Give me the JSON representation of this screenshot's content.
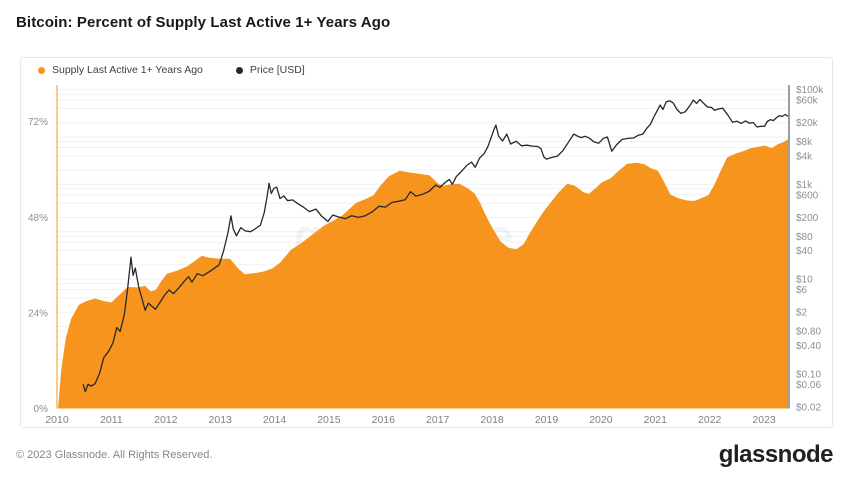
{
  "title": "Bitcoin: Percent of Supply Last Active 1+ Years Ago",
  "legend": [
    {
      "label": "Supply Last Active 1+ Years Ago",
      "color": "#f7941d"
    },
    {
      "label": "Price [USD]",
      "color": "#26282c"
    }
  ],
  "watermark": "glassnode",
  "footer": {
    "copyright": "© 2023 Glassnode. All Rights Reserved.",
    "brand": "glassnode"
  },
  "colors": {
    "area": "#f7941d",
    "price_line": "#26282c",
    "left_axis_line": "#f7941d",
    "right_axis_line": "#3a3d42",
    "gridline": "#f1f1f2",
    "watermark": "rgba(90,95,100,0.07)"
  },
  "chart_data": {
    "type": "area",
    "title": "Bitcoin: Percent of Supply Last Active 1+ Years Ago",
    "grid": true,
    "legend_position": "top-left",
    "x_axis": {
      "range": [
        2010,
        2023.44
      ],
      "ticks": [
        2010,
        2011,
        2012,
        2013,
        2014,
        2015,
        2016,
        2017,
        2018,
        2019,
        2020,
        2021,
        2022,
        2023
      ]
    },
    "left_axis": {
      "title": "Supply Last Active 1+ Years Ago",
      "unit": "%",
      "range": [
        0,
        81.2
      ],
      "tick_values": [
        0,
        24,
        48,
        72
      ],
      "tick_labels": [
        "0%",
        "24%",
        "48%",
        "72%"
      ]
    },
    "right_axis": {
      "title": "Price [USD]",
      "scale": "log",
      "range": [
        0.0185,
        125000
      ],
      "tick_values": [
        100000,
        60000,
        20000,
        8000,
        4000,
        1000,
        600,
        200,
        80,
        40,
        10,
        6,
        2,
        0.8,
        0.4,
        0.1,
        0.06,
        0.02
      ],
      "tick_labels": [
        "$100k",
        "$60k",
        "$20k",
        "$8k",
        "$4k",
        "$1k",
        "$600",
        "$200",
        "$80",
        "$40",
        "$10",
        "$6",
        "$2",
        "$0.80",
        "$0.40",
        "$0.10",
        "$0.06",
        "$0.02"
      ],
      "gridline_values": [
        0.02,
        0.04,
        0.06,
        0.08,
        0.1,
        0.2,
        0.4,
        0.6,
        0.8,
        1,
        2,
        4,
        6,
        8,
        10,
        20,
        40,
        60,
        80,
        100,
        200,
        400,
        600,
        800,
        1000,
        2000,
        4000,
        6000,
        8000,
        10000,
        20000,
        40000,
        60000,
        80000,
        100000
      ]
    },
    "series": [
      {
        "name": "Supply Last Active 1+ Years Ago",
        "type": "area",
        "axis": "left",
        "color": "#f7941d",
        "points": [
          [
            2010.02,
            0
          ],
          [
            2010.08,
            10
          ],
          [
            2010.16,
            17.5
          ],
          [
            2010.26,
            22.5
          ],
          [
            2010.4,
            26
          ],
          [
            2010.55,
            27
          ],
          [
            2010.7,
            27.6
          ],
          [
            2010.85,
            27
          ],
          [
            2011.0,
            26.6
          ],
          [
            2011.12,
            28.2
          ],
          [
            2011.3,
            30.5
          ],
          [
            2011.5,
            30.4
          ],
          [
            2011.62,
            30.8
          ],
          [
            2011.72,
            29.4
          ],
          [
            2011.82,
            29.8
          ],
          [
            2011.92,
            32
          ],
          [
            2012.02,
            33.8
          ],
          [
            2012.2,
            34.6
          ],
          [
            2012.38,
            35.6
          ],
          [
            2012.52,
            36.9
          ],
          [
            2012.66,
            38.3
          ],
          [
            2012.82,
            37.8
          ],
          [
            2013.0,
            37.6
          ],
          [
            2013.18,
            37.6
          ],
          [
            2013.32,
            35.3
          ],
          [
            2013.45,
            33.7
          ],
          [
            2013.6,
            33.9
          ],
          [
            2013.78,
            34.3
          ],
          [
            2013.95,
            35.1
          ],
          [
            2014.1,
            36.6
          ],
          [
            2014.3,
            39.8
          ],
          [
            2014.5,
            41.6
          ],
          [
            2014.68,
            43.5
          ],
          [
            2014.9,
            45.8
          ],
          [
            2015.1,
            47.3
          ],
          [
            2015.25,
            48.5
          ],
          [
            2015.5,
            51.6
          ],
          [
            2015.68,
            52.6
          ],
          [
            2015.82,
            53.5
          ],
          [
            2015.95,
            56
          ],
          [
            2016.1,
            58.3
          ],
          [
            2016.3,
            59.7
          ],
          [
            2016.5,
            59.2
          ],
          [
            2016.65,
            58.9
          ],
          [
            2016.85,
            58.5
          ],
          [
            2017.0,
            56.5
          ],
          [
            2017.1,
            55.9
          ],
          [
            2017.25,
            56.3
          ],
          [
            2017.4,
            56.4
          ],
          [
            2017.55,
            55.3
          ],
          [
            2017.68,
            54
          ],
          [
            2017.78,
            51.5
          ],
          [
            2017.9,
            48
          ],
          [
            2018.02,
            45
          ],
          [
            2018.15,
            42
          ],
          [
            2018.3,
            40.3
          ],
          [
            2018.45,
            40
          ],
          [
            2018.58,
            41.3
          ],
          [
            2018.7,
            44.2
          ],
          [
            2018.82,
            46.8
          ],
          [
            2018.95,
            49.5
          ],
          [
            2019.08,
            51.8
          ],
          [
            2019.22,
            54.2
          ],
          [
            2019.38,
            56.4
          ],
          [
            2019.52,
            55.9
          ],
          [
            2019.68,
            54.3
          ],
          [
            2019.78,
            53.9
          ],
          [
            2019.9,
            55.3
          ],
          [
            2020.02,
            56.8
          ],
          [
            2020.18,
            57.8
          ],
          [
            2020.32,
            59.6
          ],
          [
            2020.48,
            61.4
          ],
          [
            2020.65,
            61.7
          ],
          [
            2020.8,
            61.3
          ],
          [
            2020.92,
            60.3
          ],
          [
            2021.05,
            59.7
          ],
          [
            2021.15,
            57.2
          ],
          [
            2021.28,
            53.7
          ],
          [
            2021.42,
            52.8
          ],
          [
            2021.58,
            52.2
          ],
          [
            2021.72,
            52.1
          ],
          [
            2021.85,
            52.8
          ],
          [
            2021.98,
            53.6
          ],
          [
            2022.08,
            56
          ],
          [
            2022.18,
            59
          ],
          [
            2022.32,
            63
          ],
          [
            2022.48,
            64
          ],
          [
            2022.6,
            64.5
          ],
          [
            2022.75,
            65.3
          ],
          [
            2022.9,
            65.7
          ],
          [
            2023.02,
            66
          ],
          [
            2023.14,
            65.3
          ],
          [
            2023.26,
            66.4
          ],
          [
            2023.36,
            66.9
          ],
          [
            2023.44,
            67.6
          ]
        ]
      },
      {
        "name": "Price [USD]",
        "type": "line",
        "axis": "right",
        "color": "#26282c",
        "points": [
          [
            2010.48,
            0.06
          ],
          [
            2010.52,
            0.042
          ],
          [
            2010.57,
            0.06
          ],
          [
            2010.63,
            0.055
          ],
          [
            2010.7,
            0.062
          ],
          [
            2010.78,
            0.1
          ],
          [
            2010.86,
            0.22
          ],
          [
            2010.95,
            0.3
          ],
          [
            2011.03,
            0.45
          ],
          [
            2011.1,
            0.95
          ],
          [
            2011.16,
            0.78
          ],
          [
            2011.24,
            1.8
          ],
          [
            2011.3,
            6.5
          ],
          [
            2011.36,
            29
          ],
          [
            2011.4,
            12
          ],
          [
            2011.44,
            17
          ],
          [
            2011.5,
            7
          ],
          [
            2011.56,
            4
          ],
          [
            2011.62,
            2.2
          ],
          [
            2011.68,
            3.1
          ],
          [
            2011.74,
            2.7
          ],
          [
            2011.81,
            2.3
          ],
          [
            2011.9,
            3.3
          ],
          [
            2011.98,
            4.6
          ],
          [
            2012.06,
            5.9
          ],
          [
            2012.14,
            4.9
          ],
          [
            2012.24,
            6.5
          ],
          [
            2012.34,
            9
          ],
          [
            2012.42,
            11.2
          ],
          [
            2012.48,
            8.6
          ],
          [
            2012.58,
            13
          ],
          [
            2012.68,
            11.8
          ],
          [
            2012.78,
            13.8
          ],
          [
            2012.88,
            16.5
          ],
          [
            2012.98,
            20
          ],
          [
            2013.06,
            38
          ],
          [
            2013.14,
            92
          ],
          [
            2013.2,
            215
          ],
          [
            2013.24,
            115
          ],
          [
            2013.3,
            82
          ],
          [
            2013.38,
            122
          ],
          [
            2013.46,
            104
          ],
          [
            2013.56,
            100
          ],
          [
            2013.64,
            114
          ],
          [
            2013.74,
            138
          ],
          [
            2013.81,
            250
          ],
          [
            2013.86,
            520
          ],
          [
            2013.9,
            1050
          ],
          [
            2013.94,
            640
          ],
          [
            2013.99,
            830
          ],
          [
            2014.04,
            870
          ],
          [
            2014.1,
            500
          ],
          [
            2014.17,
            570
          ],
          [
            2014.24,
            450
          ],
          [
            2014.33,
            470
          ],
          [
            2014.43,
            390
          ],
          [
            2014.53,
            330
          ],
          [
            2014.64,
            265
          ],
          [
            2014.76,
            300
          ],
          [
            2014.87,
            210
          ],
          [
            2014.98,
            165
          ],
          [
            2015.07,
            225
          ],
          [
            2015.17,
            205
          ],
          [
            2015.3,
            188
          ],
          [
            2015.42,
            218
          ],
          [
            2015.54,
            200
          ],
          [
            2015.67,
            218
          ],
          [
            2015.8,
            265
          ],
          [
            2015.92,
            345
          ],
          [
            2016.04,
            330
          ],
          [
            2016.16,
            415
          ],
          [
            2016.28,
            438
          ],
          [
            2016.4,
            472
          ],
          [
            2016.5,
            700
          ],
          [
            2016.6,
            565
          ],
          [
            2016.72,
            615
          ],
          [
            2016.84,
            710
          ],
          [
            2016.96,
            965
          ],
          [
            2017.04,
            860
          ],
          [
            2017.14,
            1100
          ],
          [
            2017.21,
            1270
          ],
          [
            2017.27,
            1000
          ],
          [
            2017.34,
            1450
          ],
          [
            2017.44,
            1900
          ],
          [
            2017.54,
            2550
          ],
          [
            2017.62,
            2950
          ],
          [
            2017.69,
            2300
          ],
          [
            2017.77,
            3600
          ],
          [
            2017.85,
            4400
          ],
          [
            2017.92,
            6200
          ],
          [
            2017.98,
            9500
          ],
          [
            2018.03,
            14000
          ],
          [
            2018.07,
            17800
          ],
          [
            2018.12,
            10500
          ],
          [
            2018.19,
            8200
          ],
          [
            2018.27,
            11500
          ],
          [
            2018.34,
            7100
          ],
          [
            2018.44,
            8100
          ],
          [
            2018.54,
            6500
          ],
          [
            2018.64,
            6700
          ],
          [
            2018.74,
            6400
          ],
          [
            2018.84,
            6300
          ],
          [
            2018.9,
            5600
          ],
          [
            2018.95,
            3800
          ],
          [
            2019.0,
            3400
          ],
          [
            2019.1,
            3700
          ],
          [
            2019.2,
            3950
          ],
          [
            2019.3,
            5100
          ],
          [
            2019.42,
            8300
          ],
          [
            2019.5,
            11500
          ],
          [
            2019.57,
            10400
          ],
          [
            2019.64,
            9700
          ],
          [
            2019.71,
            10300
          ],
          [
            2019.79,
            9400
          ],
          [
            2019.87,
            7900
          ],
          [
            2019.96,
            7400
          ],
          [
            2020.05,
            9400
          ],
          [
            2020.12,
            10000
          ],
          [
            2020.2,
            5000
          ],
          [
            2020.29,
            6900
          ],
          [
            2020.39,
            8900
          ],
          [
            2020.5,
            9300
          ],
          [
            2020.6,
            9500
          ],
          [
            2020.69,
            10900
          ],
          [
            2020.77,
            11500
          ],
          [
            2020.85,
            15500
          ],
          [
            2020.91,
            18500
          ],
          [
            2020.97,
            26000
          ],
          [
            2021.03,
            35000
          ],
          [
            2021.09,
            47000
          ],
          [
            2021.14,
            38000
          ],
          [
            2021.2,
            55000
          ],
          [
            2021.27,
            58000
          ],
          [
            2021.33,
            52000
          ],
          [
            2021.4,
            38000
          ],
          [
            2021.47,
            31500
          ],
          [
            2021.55,
            34000
          ],
          [
            2021.63,
            45000
          ],
          [
            2021.7,
            60000
          ],
          [
            2021.76,
            51000
          ],
          [
            2021.82,
            62000
          ],
          [
            2021.89,
            51000
          ],
          [
            2021.96,
            43000
          ],
          [
            2022.03,
            42000
          ],
          [
            2022.09,
            36500
          ],
          [
            2022.16,
            39000
          ],
          [
            2022.24,
            40500
          ],
          [
            2022.33,
            29500
          ],
          [
            2022.42,
            20500
          ],
          [
            2022.5,
            21500
          ],
          [
            2022.58,
            19300
          ],
          [
            2022.66,
            21800
          ],
          [
            2022.73,
            19500
          ],
          [
            2022.8,
            20200
          ],
          [
            2022.87,
            16200
          ],
          [
            2022.94,
            16800
          ],
          [
            2023.01,
            16900
          ],
          [
            2023.06,
            21200
          ],
          [
            2023.12,
            23200
          ],
          [
            2023.17,
            22200
          ],
          [
            2023.22,
            25000
          ],
          [
            2023.28,
            28300
          ],
          [
            2023.33,
            27000
          ],
          [
            2023.39,
            29800
          ],
          [
            2023.44,
            27200
          ]
        ]
      }
    ]
  }
}
